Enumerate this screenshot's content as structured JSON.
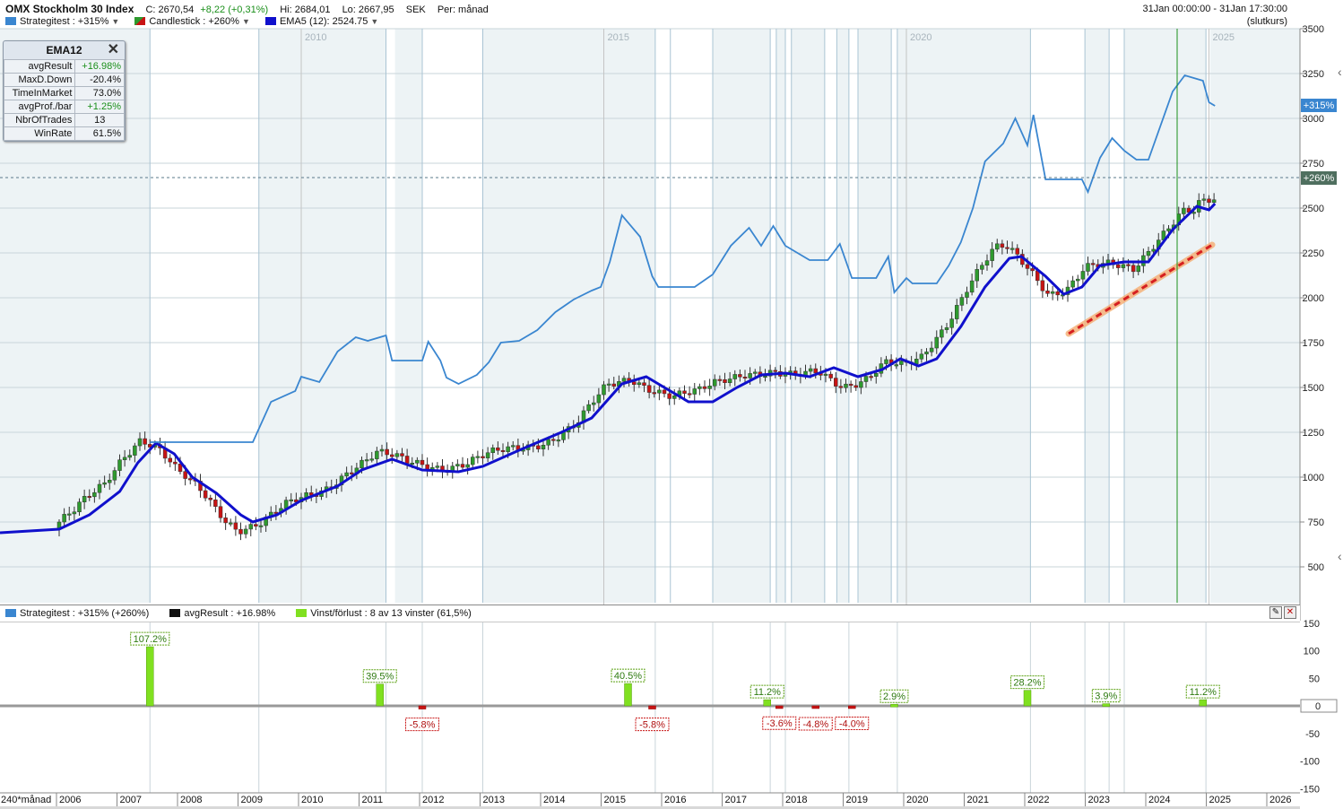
{
  "header": {
    "title": "OMX Stockholm 30 Index",
    "close": "C: 2670,54",
    "change": "+8,22 (+0,31%)",
    "high": "Hi: 2684,01",
    "low": "Lo: 2667,95",
    "currency": "SEK",
    "period": "Per: månad",
    "range": "31Jan 00:00:00 - 31Jan 17:30:00",
    "mode": "(slutkurs)"
  },
  "legend": [
    {
      "label": "Strategitest : +315%",
      "color": "#3a86d0"
    },
    {
      "label": "Candlestick : +260%",
      "color": "#2e9a2e"
    },
    {
      "label": "EMA5 (12): 2524.75",
      "color": "#1010cc"
    }
  ],
  "stats": {
    "title": "EMA12",
    "rows": [
      {
        "key": "avgResult",
        "value": "+16.98%",
        "positive": true
      },
      {
        "key": "MaxD.Down",
        "value": "-20.4%",
        "positive": false
      },
      {
        "key": "TimeInMarket",
        "value": "73.0%",
        "positive": false
      },
      {
        "key": "avgProf./bar",
        "value": "+1.25%",
        "positive": true
      },
      {
        "key": "NbrOfTrades",
        "value": "13",
        "positive": false
      },
      {
        "key": "WinRate",
        "value": "61.5%",
        "positive": false
      }
    ]
  },
  "price_axis": {
    "ticks": [
      "3500",
      "3250",
      "3000",
      "2750",
      "2500",
      "2250",
      "2000",
      "1750",
      "1500",
      "1250",
      "1000",
      "750",
      "500"
    ],
    "badge_strategy": "+315%",
    "badge_candle": "+260%"
  },
  "year_labels_top": [
    "2010",
    "2015",
    "2020",
    "2025"
  ],
  "lower_legend": [
    {
      "label": "Strategitest : +315% (+260%)",
      "color": "#3a86d0"
    },
    {
      "label": "avgResult : +16.98%",
      "color": "#111111"
    },
    {
      "label": "Vinst/förlust : 8 av 13 vinster (61,5%)",
      "color": "#80e020"
    }
  ],
  "lower_axis": {
    "ticks": [
      "150",
      "100",
      "50",
      "0",
      "-50",
      "-100",
      "-150"
    ]
  },
  "x_axis": {
    "period_label": "240*månad",
    "years": [
      "2006",
      "2007",
      "2008",
      "2009",
      "2010",
      "2011",
      "2012",
      "2013",
      "2014",
      "2015",
      "2016",
      "2017",
      "2018",
      "2019",
      "2020",
      "2021",
      "2022",
      "2023",
      "2024",
      "2025",
      "2026"
    ]
  },
  "chart_data": [
    {
      "type": "line",
      "title": "OMX Stockholm 30 Index",
      "x_unit": "year",
      "ylim": [
        300,
        3500
      ],
      "series": [
        {
          "name": "Strategitest : +315%",
          "color": "#3a86d0",
          "points": [
            [
              2007.5,
              1195
            ],
            [
              2009.2,
              1195
            ],
            [
              2009.5,
              1420
            ],
            [
              2009.9,
              1480
            ],
            [
              2010.0,
              1560
            ],
            [
              2010.3,
              1530
            ],
            [
              2010.6,
              1700
            ],
            [
              2010.9,
              1780
            ],
            [
              2011.1,
              1760
            ],
            [
              2011.4,
              1790
            ],
            [
              2011.5,
              1650
            ],
            [
              2012.0,
              1650
            ],
            [
              2012.1,
              1755
            ],
            [
              2012.3,
              1650
            ],
            [
              2012.4,
              1555
            ],
            [
              2012.6,
              1520
            ],
            [
              2012.9,
              1570
            ],
            [
              2013.1,
              1640
            ],
            [
              2013.3,
              1750
            ],
            [
              2013.6,
              1760
            ],
            [
              2013.9,
              1820
            ],
            [
              2014.2,
              1920
            ],
            [
              2014.5,
              1990
            ],
            [
              2014.8,
              2040
            ],
            [
              2014.95,
              2060
            ],
            [
              2015.1,
              2200
            ],
            [
              2015.3,
              2460
            ],
            [
              2015.6,
              2340
            ],
            [
              2015.8,
              2120
            ],
            [
              2015.9,
              2060
            ],
            [
              2016.5,
              2060
            ],
            [
              2016.8,
              2130
            ],
            [
              2017.1,
              2290
            ],
            [
              2017.4,
              2390
            ],
            [
              2017.6,
              2290
            ],
            [
              2017.8,
              2400
            ],
            [
              2018.0,
              2290
            ],
            [
              2018.2,
              2250
            ],
            [
              2018.4,
              2210
            ],
            [
              2018.7,
              2210
            ],
            [
              2018.9,
              2300
            ],
            [
              2019.1,
              2110
            ],
            [
              2019.5,
              2110
            ],
            [
              2019.7,
              2230
            ],
            [
              2019.8,
              2030
            ],
            [
              2020.0,
              2110
            ],
            [
              2020.1,
              2080
            ],
            [
              2020.5,
              2080
            ],
            [
              2020.7,
              2180
            ],
            [
              2020.9,
              2310
            ],
            [
              2021.1,
              2500
            ],
            [
              2021.3,
              2760
            ],
            [
              2021.6,
              2860
            ],
            [
              2021.8,
              3000
            ],
            [
              2022.0,
              2850
            ],
            [
              2022.1,
              3020
            ],
            [
              2022.3,
              2660
            ],
            [
              2022.9,
              2660
            ],
            [
              2023.0,
              2590
            ],
            [
              2023.2,
              2780
            ],
            [
              2023.4,
              2890
            ],
            [
              2023.6,
              2820
            ],
            [
              2023.8,
              2770
            ],
            [
              2024.0,
              2770
            ],
            [
              2024.2,
              2960
            ],
            [
              2024.4,
              3150
            ],
            [
              2024.6,
              3240
            ],
            [
              2024.9,
              3210
            ],
            [
              2025.0,
              3090
            ],
            [
              2025.1,
              3070
            ]
          ]
        },
        {
          "name": "EMA5 (12): 2524.75",
          "color": "#1010cc",
          "points": [
            [
              2006.0,
              710
            ],
            [
              2006.5,
              790
            ],
            [
              2007.0,
              920
            ],
            [
              2007.3,
              1080
            ],
            [
              2007.6,
              1190
            ],
            [
              2007.9,
              1130
            ],
            [
              2008.2,
              1000
            ],
            [
              2008.6,
              910
            ],
            [
              2009.0,
              790
            ],
            [
              2009.2,
              750
            ],
            [
              2009.6,
              790
            ],
            [
              2010.0,
              870
            ],
            [
              2010.6,
              950
            ],
            [
              2011.0,
              1040
            ],
            [
              2011.5,
              1100
            ],
            [
              2012.0,
              1040
            ],
            [
              2012.6,
              1030
            ],
            [
              2013.0,
              1060
            ],
            [
              2013.6,
              1150
            ],
            [
              2014.3,
              1250
            ],
            [
              2014.8,
              1330
            ],
            [
              2015.3,
              1520
            ],
            [
              2015.7,
              1560
            ],
            [
              2016.0,
              1500
            ],
            [
              2016.4,
              1420
            ],
            [
              2016.8,
              1420
            ],
            [
              2017.2,
              1500
            ],
            [
              2017.6,
              1570
            ],
            [
              2018.0,
              1580
            ],
            [
              2018.4,
              1560
            ],
            [
              2018.8,
              1610
            ],
            [
              2019.2,
              1560
            ],
            [
              2019.6,
              1600
            ],
            [
              2019.9,
              1660
            ],
            [
              2020.2,
              1620
            ],
            [
              2020.5,
              1660
            ],
            [
              2020.9,
              1840
            ],
            [
              2021.3,
              2060
            ],
            [
              2021.7,
              2220
            ],
            [
              2021.9,
              2230
            ],
            [
              2022.3,
              2120
            ],
            [
              2022.6,
              2020
            ],
            [
              2022.9,
              2060
            ],
            [
              2023.2,
              2180
            ],
            [
              2023.6,
              2200
            ],
            [
              2024.0,
              2200
            ],
            [
              2024.4,
              2380
            ],
            [
              2024.8,
              2510
            ],
            [
              2025.0,
              2490
            ],
            [
              2025.1,
              2524.75
            ]
          ]
        }
      ]
    },
    {
      "type": "bar",
      "title": "Vinst/förlust",
      "x_unit": "year",
      "ylim": [
        -150,
        150
      ],
      "categories": [
        "2007.5",
        "2011.3",
        "2012.0",
        "2015.4",
        "2015.8",
        "2017.7",
        "2017.9",
        "2018.5",
        "2019.1",
        "2019.8",
        "2022.0",
        "2023.3",
        "2024.9"
      ],
      "values": [
        107.2,
        39.5,
        -5.8,
        40.5,
        -5.8,
        11.2,
        -3.6,
        -4.8,
        -4.0,
        2.9,
        28.2,
        3.9,
        11.2
      ],
      "labels": [
        "107.2%",
        "39.5%",
        "-5.8%",
        "40.5%",
        "-5.8%",
        "11.2%",
        "-3.6%",
        "-4.8%",
        "-4.0%",
        "2.9%",
        "28.2%",
        "3.9%",
        "11.2%"
      ]
    }
  ]
}
